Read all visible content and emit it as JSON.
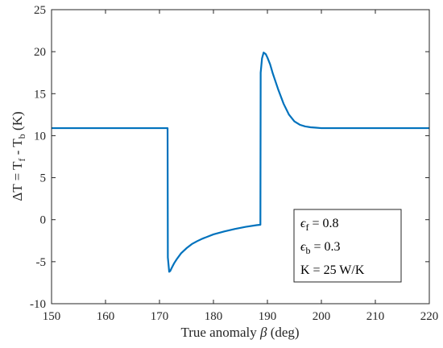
{
  "chart_data": {
    "type": "line",
    "title": "",
    "xlabel": {
      "prefix": "True anomaly ",
      "symbol": "β",
      "suffix": " (deg)"
    },
    "ylabel": {
      "delta": "ΔT = T",
      "sub1": "f",
      "mid": " - T",
      "sub2": "b",
      "unit": " (K)"
    },
    "xlim": [
      150,
      220
    ],
    "ylim": [
      -10,
      25
    ],
    "xticks": [
      "150",
      "160",
      "170",
      "180",
      "190",
      "200",
      "210",
      "220"
    ],
    "yticks": [
      "-10",
      "-5",
      "0",
      "5",
      "10",
      "15",
      "20",
      "25"
    ],
    "grid": false,
    "line_color": "#0072BD",
    "series": [
      {
        "x": [
          150,
          171.5,
          171.55,
          171.8,
          172.0,
          172.3,
          172.7,
          173.2,
          174.0,
          175.0,
          176.0,
          177.0,
          178.0,
          180.0,
          182.0,
          184.0,
          186.0,
          188.0,
          188.7,
          188.75,
          189.0,
          189.3,
          189.7,
          190.0,
          190.5,
          191.0,
          192.0,
          193.0,
          194.0,
          195.0,
          196.0,
          197.0,
          198.0,
          199.0,
          200.0,
          202.0,
          205.0,
          210.0,
          220.0
        ],
        "y": [
          10.9,
          10.9,
          -4.5,
          -6.2,
          -6.1,
          -5.7,
          -5.2,
          -4.7,
          -4.0,
          -3.4,
          -2.9,
          -2.55,
          -2.25,
          -1.75,
          -1.4,
          -1.1,
          -0.85,
          -0.65,
          -0.6,
          17.5,
          19.2,
          19.9,
          19.7,
          19.3,
          18.5,
          17.4,
          15.5,
          13.8,
          12.5,
          11.7,
          11.3,
          11.1,
          11.0,
          10.95,
          10.9,
          10.9,
          10.9,
          10.9,
          10.9
        ]
      }
    ],
    "legend_box": {
      "position": "bottom-right",
      "lines": [
        {
          "symbol": "ϵ",
          "sub": "f",
          "text": " = 0.8"
        },
        {
          "symbol": "ϵ",
          "sub": "b",
          "text": " = 0.3"
        },
        {
          "symbol": "",
          "sub": "",
          "text": "K = 25 W/K"
        }
      ]
    }
  }
}
